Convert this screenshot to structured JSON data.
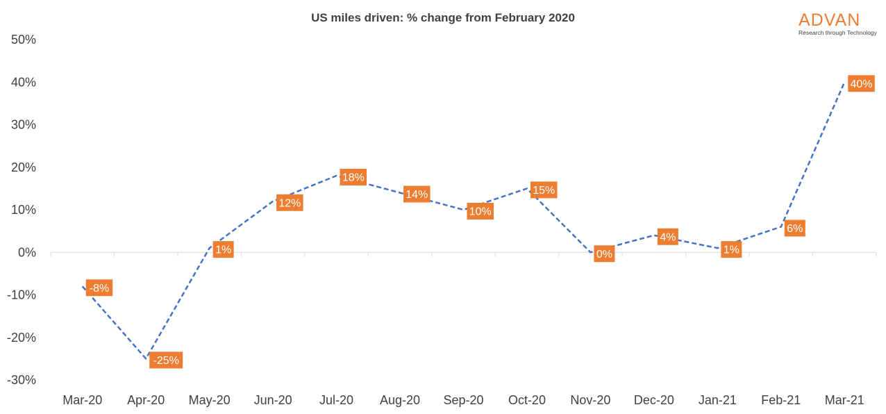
{
  "chart_data": {
    "type": "line",
    "title": "US miles driven: % change from February 2020",
    "categories": [
      "Mar-20",
      "Apr-20",
      "May-20",
      "Jun-20",
      "Jul-20",
      "Aug-20",
      "Sep-20",
      "Oct-20",
      "Nov-20",
      "Dec-20",
      "Jan-21",
      "Feb-21",
      "Mar-21"
    ],
    "series": [
      {
        "name": "US miles driven",
        "values": [
          -8,
          -25,
          1,
          12,
          18,
          14,
          10,
          15,
          0,
          4,
          1,
          6,
          40
        ],
        "labels": [
          "-8%",
          "-25%",
          "1%",
          "12%",
          "18%",
          "14%",
          "10%",
          "15%",
          "0%",
          "4%",
          "1%",
          "6%",
          "40%"
        ],
        "line_color": "#4472c4",
        "line_style": "dashed",
        "label_bg": "#ed7d31"
      }
    ],
    "ylim": [
      -30,
      50
    ],
    "yticks": [
      -30,
      -20,
      -10,
      0,
      10,
      20,
      30,
      40,
      50
    ],
    "ytick_labels": [
      "-30%",
      "-20%",
      "-10%",
      "0%",
      "10%",
      "20%",
      "30%",
      "40%",
      "50%"
    ],
    "xlabel": "",
    "ylabel": "",
    "grid": false,
    "legend": "none"
  },
  "logo": {
    "name": "ADVAN",
    "tagline": "Research through Technology"
  },
  "colors": {
    "axis": "#d9d9d9",
    "text": "#404040",
    "accent": "#ed7d31"
  }
}
